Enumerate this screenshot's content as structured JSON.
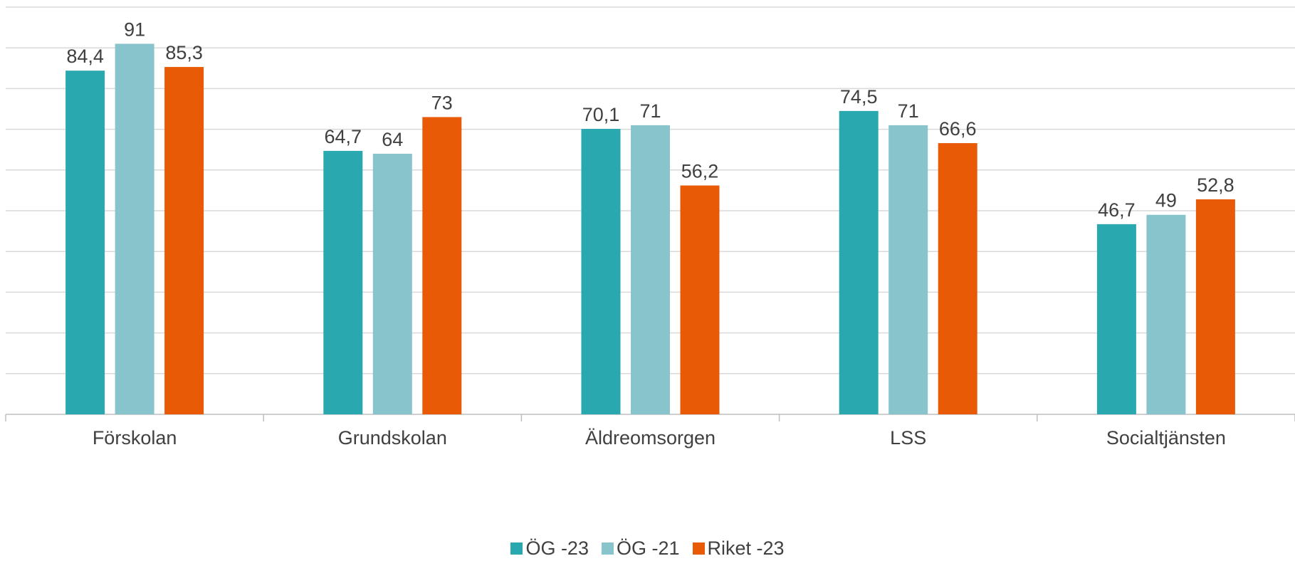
{
  "chart_data": {
    "type": "bar",
    "categories": [
      "Förskolan",
      "Grundskolan",
      "Äldreomsorgen",
      "LSS",
      "Socialtjänsten"
    ],
    "series": [
      {
        "name": "ÖG -23",
        "values": [
          84.4,
          64.7,
          70.1,
          74.5,
          46.7
        ],
        "value_labels": [
          "84,4",
          "64,7",
          "70,1",
          "74,5",
          "46,7"
        ],
        "color": "#2aa8b0"
      },
      {
        "name": "ÖG -21",
        "values": [
          91,
          64,
          71,
          71,
          49
        ],
        "value_labels": [
          "91",
          "64",
          "71",
          "71",
          "49"
        ],
        "color": "#88c4cc"
      },
      {
        "name": "Riket -23",
        "values": [
          85.3,
          73,
          56.2,
          66.6,
          52.8
        ],
        "value_labels": [
          "85,3",
          "73",
          "56,2",
          "66,6",
          "52,8"
        ],
        "color": "#e85a06"
      }
    ],
    "ylim": [
      0,
      100
    ],
    "grid": true,
    "legend_position": "bottom"
  }
}
